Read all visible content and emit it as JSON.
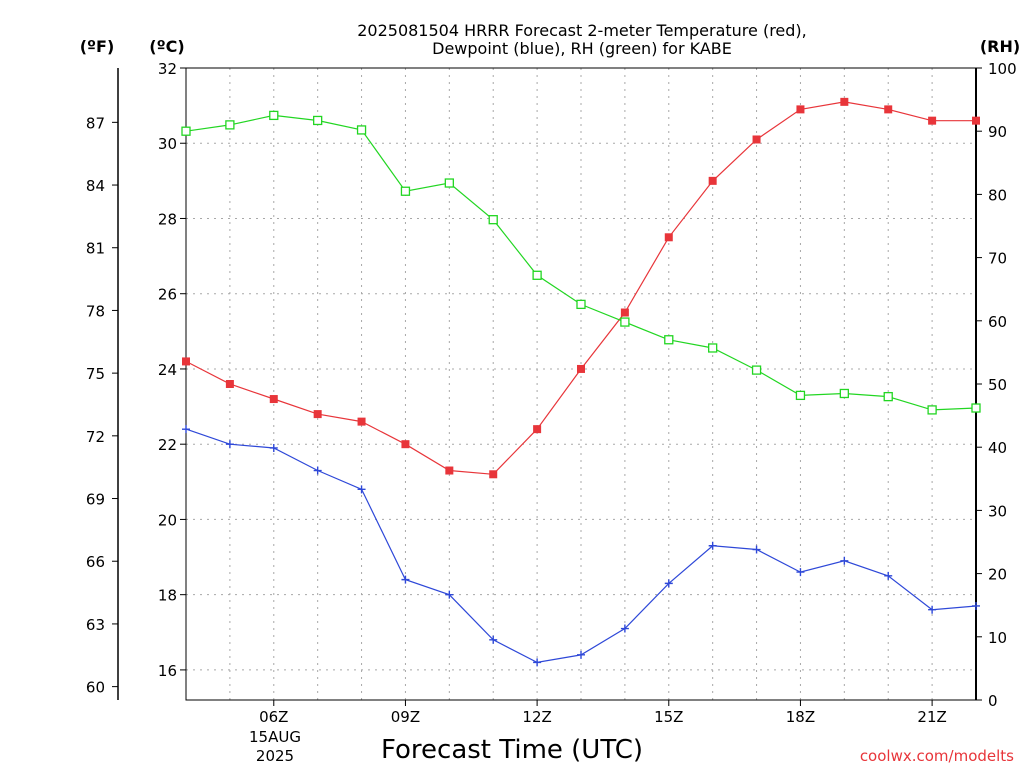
{
  "chart_data": {
    "type": "line",
    "title_lines": [
      "2025081504 HRRR Forecast 2-meter Temperature (red),",
      "Dewpoint (blue), RH (green) for KABE"
    ],
    "xlabel": "Forecast Time (UTC)",
    "date_label": [
      "15AUG",
      "2025"
    ],
    "credit": "coolwx.com/modelts",
    "left_unit_f": "(ºF)",
    "left_unit_c": "(ºC)",
    "right_unit": "(RH)",
    "x_hours": [
      4,
      5,
      6,
      7,
      8,
      9,
      10,
      11,
      12,
      13,
      14,
      15,
      16,
      17,
      18,
      19,
      20,
      21,
      22
    ],
    "x_ticks": [
      {
        "hour": 6,
        "label": "06Z"
      },
      {
        "hour": 9,
        "label": "09Z"
      },
      {
        "hour": 12,
        "label": "12Z"
      },
      {
        "hour": 15,
        "label": "15Z"
      },
      {
        "hour": 18,
        "label": "18Z"
      },
      {
        "hour": 21,
        "label": "21Z"
      }
    ],
    "xlim": [
      4,
      22
    ],
    "celsius_ylim": [
      15.2,
      32
    ],
    "celsius_ticks": [
      16,
      18,
      20,
      22,
      24,
      26,
      28,
      30,
      32
    ],
    "fahrenheit_ticks": [
      60,
      63,
      66,
      69,
      72,
      75,
      78,
      81,
      84,
      87
    ],
    "rh_ylim": [
      0,
      100
    ],
    "rh_ticks": [
      0,
      10,
      20,
      30,
      40,
      50,
      60,
      70,
      80,
      90,
      100
    ],
    "grid": true,
    "series": [
      {
        "axis": "celsius",
        "color": "#e8353a",
        "marker": "filled-square",
        "values": [
          24.2,
          23.6,
          23.2,
          22.8,
          22.6,
          22.0,
          21.3,
          21.2,
          22.4,
          24.0,
          25.5,
          27.5,
          29.0,
          30.1,
          30.9,
          31.1,
          30.9,
          30.6,
          30.6
        ]
      },
      {
        "axis": "celsius",
        "color": "#2e48d8",
        "marker": "plus",
        "values": [
          22.4,
          22.0,
          21.9,
          21.3,
          20.8,
          18.4,
          18.0,
          16.8,
          16.2,
          16.4,
          17.1,
          18.3,
          19.3,
          19.2,
          18.6,
          18.9,
          18.5,
          17.6,
          17.7
        ]
      },
      {
        "axis": "rh",
        "color": "#22d622",
        "marker": "open-square",
        "values": [
          90,
          91,
          92.5,
          91.7,
          90.2,
          80.5,
          81.8,
          76,
          67.2,
          62.6,
          59.8,
          57,
          55.7,
          52.2,
          48.2,
          48.5,
          48,
          45.9,
          46.2
        ]
      }
    ]
  }
}
